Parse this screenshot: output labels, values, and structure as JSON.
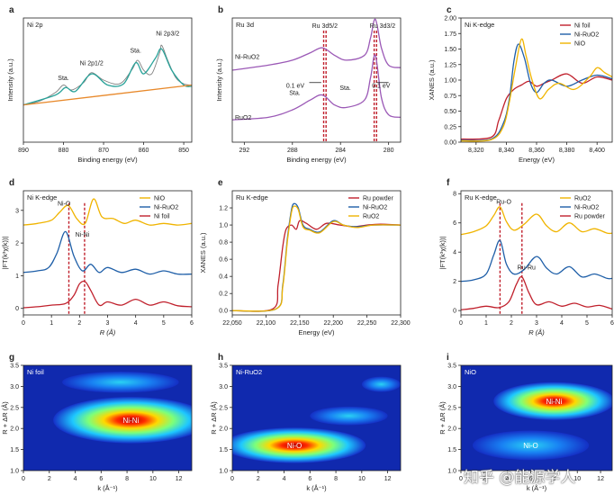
{
  "watermark": "知乎 @能源学人",
  "colors": {
    "red": "#c0202c",
    "blue": "#1f5fa8",
    "gold": "#f0b400",
    "gray": "#808080",
    "teal": "#2aa39a",
    "purple": "#9b59b6",
    "orange": "#e8892b",
    "green": "#5a9a3c"
  },
  "chart_data": [
    {
      "id": "a",
      "type": "line",
      "letter": "a",
      "title": "Ni 2p",
      "xlabel": "Binding energy (eV)",
      "ylabel": "Intensity (a.u.)",
      "xlim": [
        890,
        848
      ],
      "ylim": [
        0,
        1
      ],
      "xticks": [
        890,
        880,
        870,
        860,
        850
      ],
      "series": [
        {
          "name": "raw",
          "color": "gray",
          "x": [
            890,
            886,
            882,
            880,
            878,
            875,
            873,
            870,
            866,
            863,
            861.5,
            860,
            858,
            856,
            855.5,
            854,
            852,
            850,
            848
          ],
          "y": [
            0.3,
            0.33,
            0.4,
            0.46,
            0.42,
            0.48,
            0.56,
            0.5,
            0.47,
            0.58,
            0.66,
            0.58,
            0.55,
            0.72,
            0.78,
            0.66,
            0.52,
            0.47,
            0.46
          ]
        },
        {
          "name": "fit",
          "color": "teal",
          "x": [
            890,
            882,
            879.5,
            877,
            873,
            869,
            865,
            862,
            860,
            857,
            855.5,
            853,
            850,
            848
          ],
          "y": [
            0.3,
            0.38,
            0.44,
            0.41,
            0.55,
            0.46,
            0.47,
            0.64,
            0.55,
            0.68,
            0.75,
            0.58,
            0.46,
            0.45
          ]
        },
        {
          "name": "baseline",
          "color": "orange",
          "x": [
            890,
            848
          ],
          "y": [
            0.3,
            0.46
          ]
        }
      ],
      "annotations": [
        {
          "text": "Sta.",
          "x": 880,
          "y": 0.5
        },
        {
          "text": "Ni 2p1/2",
          "x": 873,
          "y": 0.62
        },
        {
          "text": "Sta.",
          "x": 862,
          "y": 0.72
        },
        {
          "text": "Ni 2p3/2",
          "x": 854,
          "y": 0.86
        }
      ]
    },
    {
      "id": "b",
      "type": "line",
      "letter": "b",
      "title": "Ru 3d",
      "xlabel": "Binding energy (eV)",
      "ylabel": "Intensity (a.u.)",
      "xlim": [
        293,
        279
      ],
      "ylim": [
        0,
        1
      ],
      "xticks": [
        292,
        288,
        284,
        280
      ],
      "labels": {
        "top_sample": "Ni-RuO2",
        "bottom_sample": "RuO2",
        "shift_left": "0.1 eV",
        "shift_right": "0.1 eV"
      },
      "series": [
        {
          "name": "Ni-RuO2",
          "color": "purple",
          "x": [
            293,
            290,
            288,
            286.5,
            285.5,
            284.5,
            283.5,
            282,
            281.5,
            281.1,
            280.6,
            280,
            279
          ],
          "y": [
            0.58,
            0.62,
            0.66,
            0.72,
            0.76,
            0.7,
            0.66,
            0.7,
            0.84,
            0.99,
            0.76,
            0.62,
            0.6
          ]
        },
        {
          "name": "RuO2",
          "color": "purple",
          "x": [
            293,
            290,
            288,
            286.5,
            285.5,
            284.5,
            283.5,
            282,
            281.5,
            281.1,
            280.6,
            280,
            279
          ],
          "y": [
            0.18,
            0.2,
            0.26,
            0.34,
            0.38,
            0.3,
            0.28,
            0.34,
            0.52,
            0.7,
            0.36,
            0.22,
            0.2
          ]
        }
      ],
      "dashed": [
        {
          "x": 285.4,
          "color": "red"
        },
        {
          "x": 285.2,
          "color": "red"
        },
        {
          "x": 281.2,
          "color": "red"
        },
        {
          "x": 281.0,
          "color": "red"
        }
      ],
      "annotations": [
        {
          "text": "Ru 3d5/2",
          "x": 285.3,
          "y": 0.92
        },
        {
          "text": "Ru 3d3/2",
          "x": 280.5,
          "y": 0.92
        },
        {
          "text": "Sta.",
          "x": 287.8,
          "y": 0.38
        },
        {
          "text": "Sta.",
          "x": 283.6,
          "y": 0.42
        }
      ]
    },
    {
      "id": "c",
      "type": "line",
      "letter": "c",
      "title": "Ni K-edge",
      "xlabel": "Energy (eV)",
      "ylabel": "XANES (a.u.)",
      "xlim": [
        8310,
        8410
      ],
      "ylim": [
        0,
        2.0
      ],
      "xticks": [
        8320,
        8340,
        8360,
        8380,
        8400
      ],
      "yticks": [
        0,
        0.25,
        0.5,
        0.75,
        1.0,
        1.25,
        1.5,
        1.75,
        2.0
      ],
      "legend": [
        "Ni foil",
        "Ni-RuO2",
        "NiO"
      ],
      "series": [
        {
          "name": "Ni foil",
          "color": "red",
          "x": [
            8310,
            8330,
            8335,
            8340,
            8345,
            8350,
            8355,
            8360,
            8365,
            8370,
            8380,
            8390,
            8400,
            8410
          ],
          "y": [
            0.05,
            0.08,
            0.35,
            0.7,
            0.85,
            0.92,
            0.98,
            0.9,
            0.95,
            1.0,
            1.1,
            0.95,
            1.05,
            1.0
          ]
        },
        {
          "name": "Ni-RuO2",
          "color": "blue",
          "x": [
            8310,
            8330,
            8338,
            8342,
            8345,
            8348,
            8352,
            8356,
            8360,
            8365,
            8370,
            8380,
            8390,
            8400,
            8410
          ],
          "y": [
            0.03,
            0.05,
            0.3,
            0.7,
            1.3,
            1.58,
            1.35,
            0.95,
            0.8,
            0.95,
            1.0,
            0.9,
            1.0,
            1.08,
            1.02
          ]
        },
        {
          "name": "NiO",
          "color": "gold",
          "x": [
            8310,
            8330,
            8338,
            8342,
            8346,
            8350,
            8353,
            8357,
            8362,
            8368,
            8375,
            8385,
            8395,
            8400,
            8405,
            8410
          ],
          "y": [
            0.02,
            0.04,
            0.25,
            0.65,
            1.2,
            1.66,
            1.4,
            1.0,
            0.7,
            0.85,
            0.95,
            0.85,
            1.05,
            1.2,
            1.12,
            1.05
          ]
        }
      ]
    },
    {
      "id": "d",
      "type": "line",
      "letter": "d",
      "title": "Ni K-edge",
      "xlabel": "R (Å)",
      "ylabel": "|FT(k³χ(k))|",
      "xlim": [
        0,
        6
      ],
      "ylim": [
        -0.2,
        3.6
      ],
      "xticks": [
        0,
        1,
        2,
        3,
        4,
        5,
        6
      ],
      "yticks": [
        0,
        1,
        2,
        3
      ],
      "legend": [
        "NiO",
        "Ni-RuO2",
        "Ni foil"
      ],
      "dashed": [
        {
          "x": 1.62,
          "color": "red"
        },
        {
          "x": 2.18,
          "color": "red"
        }
      ],
      "annotations": [
        {
          "text": "Ni-O",
          "x": 1.45,
          "y": 3.15
        },
        {
          "text": "Ni-Ni",
          "x": 2.1,
          "y": 2.2
        }
      ],
      "series": [
        {
          "name": "NiO",
          "color": "gold",
          "x": [
            0,
            0.5,
            1.0,
            1.3,
            1.6,
            1.9,
            2.2,
            2.5,
            2.8,
            3.2,
            3.6,
            4.0,
            4.5,
            5.0,
            5.5,
            6
          ],
          "y": [
            2.55,
            2.6,
            2.7,
            2.95,
            3.15,
            2.75,
            2.6,
            3.35,
            2.8,
            2.75,
            2.6,
            2.7,
            2.55,
            2.6,
            2.55,
            2.6
          ]
        },
        {
          "name": "Ni-RuO2",
          "color": "blue",
          "x": [
            0,
            0.5,
            0.9,
            1.2,
            1.5,
            1.8,
            2.1,
            2.4,
            2.7,
            3.0,
            3.5,
            4.0,
            4.5,
            5.0,
            5.5,
            6
          ],
          "y": [
            1.1,
            1.15,
            1.25,
            1.7,
            2.35,
            1.6,
            1.15,
            1.35,
            1.1,
            1.25,
            1.1,
            1.2,
            1.05,
            1.15,
            1.05,
            1.05
          ]
        },
        {
          "name": "Ni foil",
          "color": "red",
          "x": [
            0,
            0.5,
            1.0,
            1.5,
            1.8,
            2.0,
            2.2,
            2.4,
            2.7,
            3.0,
            3.5,
            4.0,
            4.5,
            5.0,
            5.5,
            6
          ],
          "y": [
            0.02,
            0.05,
            0.1,
            0.15,
            0.4,
            0.75,
            0.82,
            0.55,
            0.1,
            0.2,
            0.1,
            0.28,
            0.1,
            0.2,
            0.08,
            0.05
          ]
        }
      ]
    },
    {
      "id": "e",
      "type": "line",
      "letter": "e",
      "title": "Ru K-edge",
      "xlabel": "Energy (eV)",
      "ylabel": "XANES (a.u.)",
      "xlim": [
        22050,
        22300
      ],
      "ylim": [
        -0.05,
        1.4
      ],
      "xticks": [
        22050,
        22100,
        22150,
        22200,
        22250,
        22300
      ],
      "yticks": [
        0,
        0.2,
        0.4,
        0.6,
        0.8,
        1.0,
        1.2
      ],
      "legend": [
        "Ru powder",
        "Ni-RuO2",
        "RuO2"
      ],
      "series": [
        {
          "name": "Ru powder",
          "color": "red",
          "x": [
            22050,
            22110,
            22118,
            22125,
            22130,
            22138,
            22145,
            22150,
            22160,
            22175,
            22190,
            22210,
            22230,
            22250,
            22270,
            22300
          ],
          "y": [
            0.0,
            0.02,
            0.3,
            0.75,
            0.95,
            1.0,
            0.95,
            1.05,
            1.02,
            0.95,
            1.02,
            1.0,
            0.98,
            1.0,
            1.01,
            1.0
          ]
        },
        {
          "name": "Ni-RuO2",
          "color": "blue",
          "x": [
            22050,
            22115,
            22125,
            22132,
            22138,
            22142,
            22148,
            22155,
            22165,
            22180,
            22200,
            22215,
            22235,
            22260,
            22300
          ],
          "y": [
            0.0,
            0.02,
            0.3,
            0.85,
            1.18,
            1.25,
            1.2,
            1.0,
            0.95,
            0.92,
            1.05,
            1.0,
            0.98,
            1.0,
            1.0
          ]
        },
        {
          "name": "RuO2",
          "color": "gold",
          "x": [
            22050,
            22115,
            22125,
            22132,
            22138,
            22142,
            22148,
            22155,
            22165,
            22180,
            22200,
            22215,
            22235,
            22260,
            22300
          ],
          "y": [
            0.0,
            0.02,
            0.28,
            0.82,
            1.15,
            1.22,
            1.18,
            0.98,
            0.94,
            0.91,
            1.04,
            1.0,
            0.97,
            1.0,
            1.0
          ]
        }
      ]
    },
    {
      "id": "f",
      "type": "line",
      "letter": "f",
      "title": "Ru K-edge",
      "xlabel": "R (Å)",
      "ylabel": "|FT(k³χ(k))|",
      "xlim": [
        0,
        6
      ],
      "ylim": [
        -0.3,
        8.2
      ],
      "xticks": [
        0,
        1,
        2,
        3,
        4,
        5,
        6
      ],
      "yticks": [
        0,
        2,
        4,
        6,
        8
      ],
      "legend": [
        "RuO2",
        "Ni-RuO2",
        "Ru powder"
      ],
      "dashed": [
        {
          "x": 1.55,
          "color": "red"
        },
        {
          "x": 2.42,
          "color": "red"
        }
      ],
      "annotations": [
        {
          "text": "Ru-O",
          "x": 1.7,
          "y": 7.3
        },
        {
          "text": "Ru-Ru",
          "x": 2.6,
          "y": 2.8
        }
      ],
      "series": [
        {
          "name": "RuO2",
          "color": "gold",
          "x": [
            0,
            0.5,
            1.0,
            1.3,
            1.55,
            1.8,
            2.1,
            2.5,
            3.0,
            3.4,
            3.8,
            4.3,
            4.8,
            5.3,
            5.8,
            6
          ],
          "y": [
            5.2,
            5.4,
            5.8,
            6.5,
            7.1,
            6.1,
            5.5,
            5.9,
            6.6,
            5.8,
            5.4,
            6.0,
            5.4,
            5.6,
            5.3,
            5.3
          ]
        },
        {
          "name": "Ni-RuO2",
          "color": "blue",
          "x": [
            0,
            0.5,
            1.0,
            1.3,
            1.55,
            1.8,
            2.1,
            2.5,
            3.0,
            3.4,
            3.8,
            4.3,
            4.8,
            5.3,
            5.8,
            6
          ],
          "y": [
            2.0,
            2.1,
            2.5,
            3.8,
            4.8,
            3.2,
            2.5,
            2.8,
            3.7,
            2.9,
            2.5,
            3.0,
            2.3,
            2.5,
            2.2,
            2.2
          ]
        },
        {
          "name": "Ru powder",
          "color": "red",
          "x": [
            0,
            0.5,
            1.0,
            1.5,
            1.9,
            2.2,
            2.42,
            2.7,
            3.0,
            3.5,
            4.0,
            4.5,
            5.0,
            5.5,
            6
          ],
          "y": [
            0.05,
            0.15,
            0.3,
            0.2,
            0.6,
            1.8,
            2.3,
            1.2,
            0.4,
            0.6,
            0.3,
            0.5,
            0.25,
            0.35,
            0.1
          ]
        }
      ]
    },
    {
      "id": "g",
      "type": "heatmap",
      "letter": "g",
      "title": "Ni foil",
      "xlabel": "k (Å⁻¹)",
      "ylabel": "R + ΔR (Å)",
      "xlim": [
        0,
        13
      ],
      "ylim": [
        1.0,
        3.5
      ],
      "xticks": [
        0,
        2,
        4,
        6,
        8,
        10,
        12
      ],
      "yticks": [
        1.0,
        1.5,
        2.0,
        2.5,
        3.0,
        3.5
      ],
      "blobs": [
        {
          "label": "Ni-Ni",
          "kx": 8.3,
          "ry": 2.2,
          "rx": 6.0,
          "rr": 0.55,
          "intensity": 1.0,
          "show_label": true
        },
        {
          "label": "",
          "kx": 7.5,
          "ry": 3.1,
          "rx": 4.5,
          "rr": 0.25,
          "intensity": 0.25,
          "show_label": false
        }
      ]
    },
    {
      "id": "h",
      "type": "heatmap",
      "letter": "h",
      "title": "Ni-RuO2",
      "xlabel": "k (Å⁻¹)",
      "ylabel": "R + ΔR (Å)",
      "xlim": [
        0,
        13
      ],
      "ylim": [
        1.0,
        3.5
      ],
      "xticks": [
        0,
        2,
        4,
        6,
        8,
        10,
        12
      ],
      "yticks": [
        1.0,
        1.5,
        2.0,
        2.5,
        3.0,
        3.5
      ],
      "blobs": [
        {
          "label": "Ni-O",
          "kx": 4.8,
          "ry": 1.6,
          "rx": 5.5,
          "rr": 0.42,
          "intensity": 1.0,
          "show_label": true
        },
        {
          "label": "",
          "kx": 9.0,
          "ry": 2.3,
          "rx": 3.0,
          "rr": 0.22,
          "intensity": 0.3,
          "show_label": false
        },
        {
          "label": "",
          "kx": 11.5,
          "ry": 3.05,
          "rx": 1.5,
          "rr": 0.18,
          "intensity": 0.35,
          "show_label": false
        }
      ]
    },
    {
      "id": "i",
      "type": "heatmap",
      "letter": "i",
      "title": "NiO",
      "xlabel": "k (Å⁻¹)",
      "ylabel": "R + ΔR (Å)",
      "xlim": [
        0,
        13
      ],
      "ylim": [
        1.0,
        3.5
      ],
      "xticks": [
        0,
        2,
        4,
        6,
        8,
        10,
        12
      ],
      "yticks": [
        1.0,
        1.5,
        2.0,
        2.5,
        3.0,
        3.5
      ],
      "blobs": [
        {
          "label": "Ni-Ni",
          "kx": 8.0,
          "ry": 2.65,
          "rx": 5.2,
          "rr": 0.45,
          "intensity": 1.0,
          "show_label": true
        },
        {
          "label": "Ni-O",
          "kx": 6.0,
          "ry": 1.6,
          "rx": 5.0,
          "rr": 0.35,
          "intensity": 0.45,
          "show_label": true
        }
      ]
    }
  ]
}
